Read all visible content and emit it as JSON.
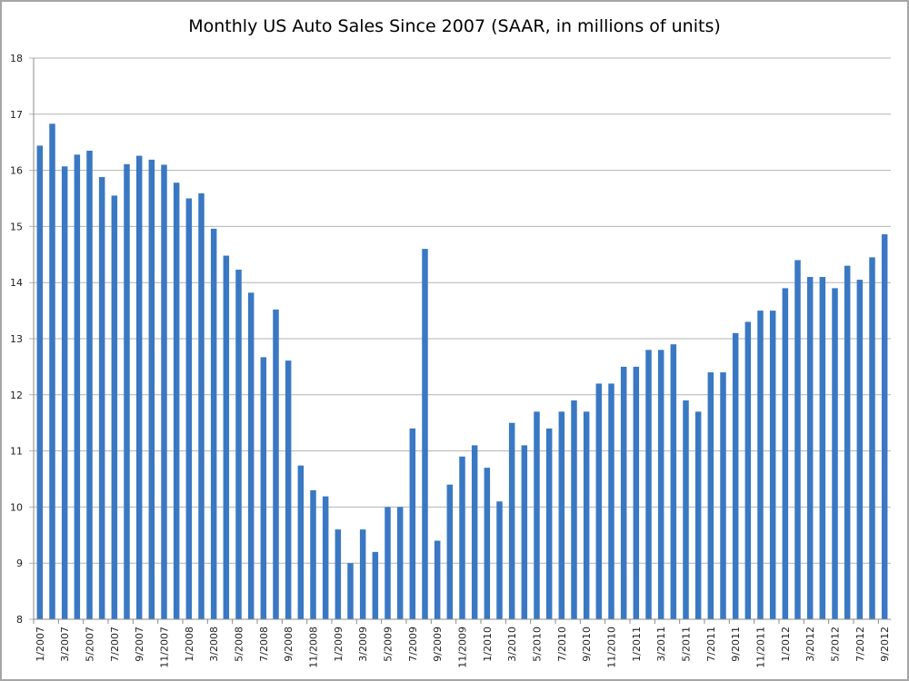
{
  "chart_data": {
    "type": "bar",
    "title": "Monthly US Auto Sales Since 2007 (SAAR, in millions of units)",
    "xlabel": "",
    "ylabel": "",
    "ylim": [
      8,
      18
    ],
    "yticks": [
      8,
      9,
      10,
      11,
      12,
      13,
      14,
      15,
      16,
      17,
      18
    ],
    "grid": true,
    "legend": "none",
    "bar_color": "#3a78c3",
    "categories": [
      "1/2007",
      "2/2007",
      "3/2007",
      "4/2007",
      "5/2007",
      "6/2007",
      "7/2007",
      "8/2007",
      "9/2007",
      "10/2007",
      "11/2007",
      "12/2007",
      "1/2008",
      "2/2008",
      "3/2008",
      "4/2008",
      "5/2008",
      "6/2008",
      "7/2008",
      "8/2008",
      "9/2008",
      "10/2008",
      "11/2008",
      "12/2008",
      "1/2009",
      "2/2009",
      "3/2009",
      "4/2009",
      "5/2009",
      "6/2009",
      "7/2009",
      "8/2009",
      "9/2009",
      "10/2009",
      "11/2009",
      "12/2009",
      "1/2010",
      "2/2010",
      "3/2010",
      "4/2010",
      "5/2010",
      "6/2010",
      "7/2010",
      "8/2010",
      "9/2010",
      "10/2010",
      "11/2010",
      "12/2010",
      "1/2011",
      "2/2011",
      "3/2011",
      "4/2011",
      "5/2011",
      "6/2011",
      "7/2011",
      "8/2011",
      "9/2011",
      "10/2011",
      "11/2011",
      "12/2011",
      "1/2012",
      "2/2012",
      "3/2012",
      "4/2012",
      "5/2012",
      "6/2012",
      "7/2012",
      "8/2012",
      "9/2012"
    ],
    "tick_labels_shown_every": 2,
    "values": [
      16.44,
      16.83,
      16.07,
      16.28,
      16.35,
      15.88,
      15.55,
      16.11,
      16.26,
      16.19,
      16.1,
      15.78,
      15.5,
      15.59,
      14.96,
      14.48,
      14.23,
      13.82,
      12.67,
      13.52,
      12.61,
      10.74,
      10.3,
      10.19,
      9.6,
      9.0,
      9.6,
      9.2,
      10.0,
      10.0,
      11.4,
      14.6,
      9.4,
      10.4,
      10.9,
      11.1,
      10.7,
      10.1,
      11.5,
      11.1,
      11.7,
      11.4,
      11.7,
      11.9,
      11.7,
      12.2,
      12.2,
      12.5,
      12.5,
      12.8,
      12.8,
      12.9,
      11.9,
      11.7,
      12.4,
      12.4,
      13.1,
      13.3,
      13.5,
      13.5,
      13.9,
      14.4,
      14.1,
      14.1,
      13.9,
      14.3,
      14.05,
      14.45,
      14.86
    ]
  }
}
